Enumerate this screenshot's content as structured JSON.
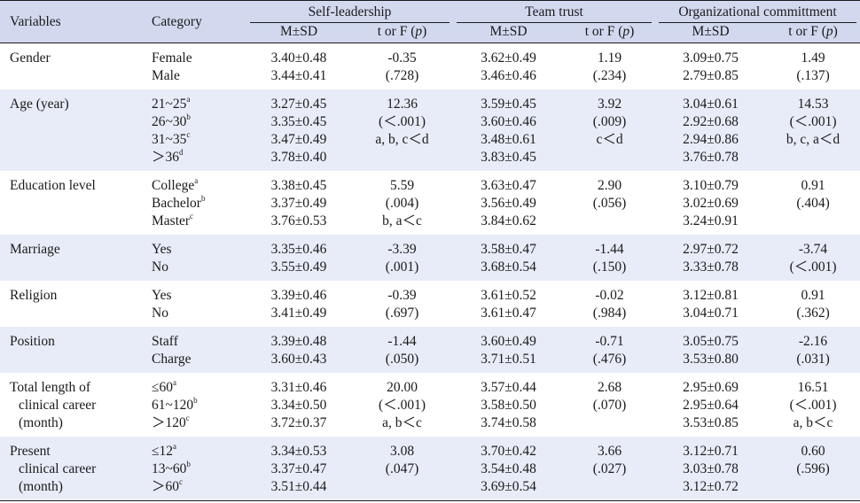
{
  "header": {
    "variables": "Variables",
    "category": "Category",
    "groups": [
      "Self-leadership",
      "Team trust",
      "Organizational committment"
    ],
    "sub_msd": "M±SD",
    "sub_test_prefix": "t or F (",
    "sub_test_p": "p",
    "sub_test_suffix": ")"
  },
  "rows": [
    {
      "variable": [
        "Gender"
      ],
      "cats": [
        [
          "Female",
          ""
        ],
        [
          "Male",
          ""
        ]
      ],
      "sl_msd": [
        "3.40±0.48",
        "3.44±0.41"
      ],
      "sl_t": [
        "-0.35",
        "(.728)"
      ],
      "tt_msd": [
        "3.62±0.49",
        "3.46±0.46"
      ],
      "tt_t": [
        "1.19",
        "(.234)"
      ],
      "oc_msd": [
        "3.09±0.75",
        "2.79±0.85"
      ],
      "oc_t": [
        "1.49",
        "(.137)"
      ]
    },
    {
      "variable": [
        "Age (year)"
      ],
      "cats": [
        [
          "21~25",
          "a"
        ],
        [
          "26~30",
          "b"
        ],
        [
          "31~35",
          "c"
        ],
        [
          "＞36",
          "d"
        ]
      ],
      "sl_msd": [
        "3.27±0.45",
        "3.35±0.45",
        "3.47±0.49",
        "3.78±0.40"
      ],
      "sl_t": [
        "12.36",
        "(＜.001)",
        "a, b, c＜d"
      ],
      "tt_msd": [
        "3.59±0.45",
        "3.60±0.46",
        "3.48±0.61",
        "3.83±0.45"
      ],
      "tt_t": [
        "3.92",
        "(.009)",
        "c＜d"
      ],
      "oc_msd": [
        "3.04±0.61",
        "2.92±0.68",
        "2.94±0.86",
        "3.76±0.78"
      ],
      "oc_t": [
        "14.53",
        "(＜.001)",
        "b, c, a＜d"
      ]
    },
    {
      "variable": [
        "Education level"
      ],
      "cats": [
        [
          "College",
          "a"
        ],
        [
          "Bachelor",
          "b"
        ],
        [
          "Master",
          "c"
        ]
      ],
      "sl_msd": [
        "3.38±0.45",
        "3.37±0.49",
        "3.76±0.53"
      ],
      "sl_t": [
        "5.59",
        "(.004)",
        "b, a＜c"
      ],
      "tt_msd": [
        "3.63±0.47",
        "3.56±0.49",
        "3.84±0.62"
      ],
      "tt_t": [
        "2.90",
        "(.056)"
      ],
      "oc_msd": [
        "3.10±0.79",
        "3.02±0.69",
        "3.24±0.91"
      ],
      "oc_t": [
        "0.91",
        "(.404)"
      ]
    },
    {
      "variable": [
        "Marriage"
      ],
      "cats": [
        [
          "Yes",
          ""
        ],
        [
          "No",
          ""
        ]
      ],
      "sl_msd": [
        "3.35±0.46",
        "3.55±0.49"
      ],
      "sl_t": [
        "-3.39",
        "(.001)"
      ],
      "tt_msd": [
        "3.58±0.47",
        "3.68±0.54"
      ],
      "tt_t": [
        "-1.44",
        "(.150)"
      ],
      "oc_msd": [
        "2.97±0.72",
        "3.33±0.78"
      ],
      "oc_t": [
        "-3.74",
        "(＜.001)"
      ]
    },
    {
      "variable": [
        "Religion"
      ],
      "cats": [
        [
          "Yes",
          ""
        ],
        [
          "No",
          ""
        ]
      ],
      "sl_msd": [
        "3.39±0.46",
        "3.41±0.49"
      ],
      "sl_t": [
        "-0.39",
        "(.697)"
      ],
      "tt_msd": [
        "3.61±0.52",
        "3.61±0.47"
      ],
      "tt_t": [
        "-0.02",
        "(.984)"
      ],
      "oc_msd": [
        "3.12±0.81",
        "3.04±0.71"
      ],
      "oc_t": [
        "0.91",
        "(.362)"
      ]
    },
    {
      "variable": [
        "Position"
      ],
      "cats": [
        [
          "Staff",
          ""
        ],
        [
          "Charge",
          ""
        ]
      ],
      "sl_msd": [
        "3.39±0.48",
        "3.60±0.43"
      ],
      "sl_t": [
        "-1.44",
        "(.050)"
      ],
      "tt_msd": [
        "3.60±0.49",
        "3.71±0.51"
      ],
      "tt_t": [
        "-0.71",
        "(.476)"
      ],
      "oc_msd": [
        "3.05±0.75",
        "3.53±0.80"
      ],
      "oc_t": [
        "-2.16",
        "(.031)"
      ]
    },
    {
      "variable": [
        "Total length of",
        "clinical career",
        "(month)"
      ],
      "cats": [
        [
          "≤60",
          "a"
        ],
        [
          "61~120",
          "b"
        ],
        [
          "＞120",
          "c"
        ]
      ],
      "sl_msd": [
        "3.31±0.46",
        "3.34±0.50",
        "3.72±0.37"
      ],
      "sl_t": [
        "20.00",
        "(＜.001)",
        "a, b＜c"
      ],
      "tt_msd": [
        "3.57±0.44",
        "3.58±0.50",
        "3.74±0.58"
      ],
      "tt_t": [
        "2.68",
        "(.070)"
      ],
      "oc_msd": [
        "2.95±0.69",
        "2.95±0.64",
        "3.53±0.85"
      ],
      "oc_t": [
        "16.51",
        "(＜.001)",
        "a, b＜c"
      ]
    },
    {
      "variable": [
        "Present",
        "clinical career",
        "(month)"
      ],
      "cats": [
        [
          "≤12",
          "a"
        ],
        [
          "13~60",
          "b"
        ],
        [
          "＞60",
          "c"
        ]
      ],
      "sl_msd": [
        "3.34±0.53",
        "3.37±0.47",
        "3.51±0.44"
      ],
      "sl_t": [
        "3.08",
        "(.047)"
      ],
      "tt_msd": [
        "3.70±0.42",
        "3.54±0.48",
        "3.69±0.54"
      ],
      "tt_t": [
        "3.66",
        "(.027)"
      ],
      "oc_msd": [
        "3.12±0.71",
        "3.03±0.78",
        "3.12±0.72"
      ],
      "oc_t": [
        "0.60",
        "(.596)"
      ]
    }
  ]
}
